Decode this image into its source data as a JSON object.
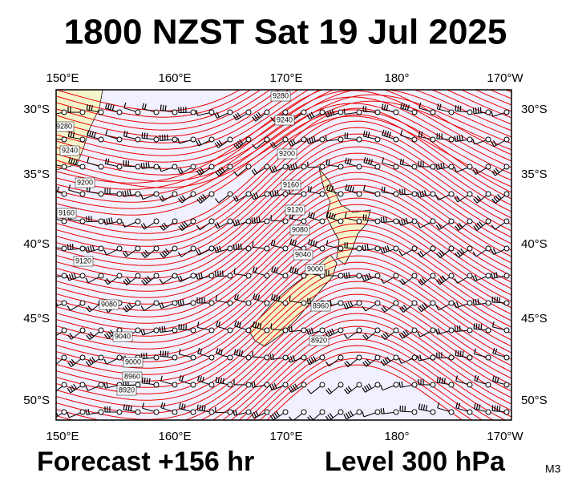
{
  "header": {
    "title": "1800 NZST Sat 19 Jul 2025"
  },
  "map": {
    "lon_labels": [
      "150°E",
      "160°E",
      "170°E",
      "180°",
      "170°W"
    ],
    "lat_labels": [
      "30°S",
      "35°S",
      "40°S",
      "45°S",
      "50°S"
    ],
    "contour_labels": [
      "9280",
      "9240",
      "9280",
      "9240",
      "9200",
      "9200",
      "9160",
      "9160",
      "9120",
      "9080",
      "9040",
      "9120",
      "9000",
      "9080",
      "8960",
      "9040",
      "8920",
      "9000",
      "8960",
      "8920"
    ]
  },
  "footer": {
    "forecast": "Forecast +156 hr",
    "level": "Level 300 hPa",
    "model": "M3"
  }
}
